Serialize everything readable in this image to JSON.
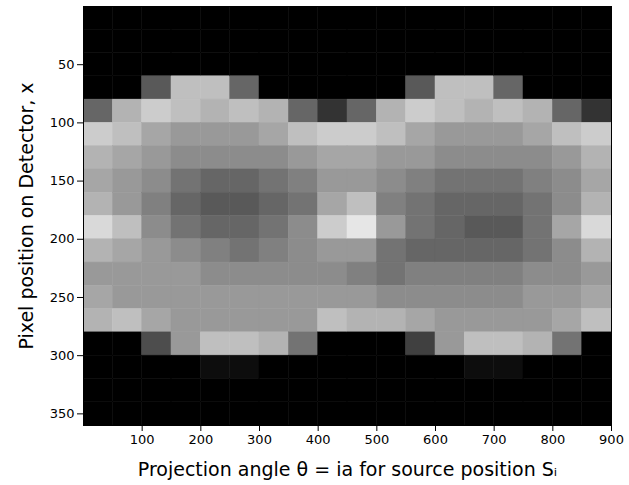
{
  "chart_data": {
    "type": "heatmap",
    "x_label": "Projection angle θ = ia for source position Sᵢ",
    "y_label": "Pixel position on Detector, x",
    "xlim": [
      0,
      900
    ],
    "ylim": [
      0,
      360
    ],
    "xticks": [
      100,
      200,
      300,
      400,
      500,
      600,
      700,
      800,
      900
    ],
    "yticks": [
      50,
      100,
      150,
      200,
      250,
      300,
      350
    ],
    "x_bins": [
      0,
      50,
      100,
      150,
      200,
      250,
      300,
      350,
      400,
      450,
      500,
      550,
      600,
      650,
      700,
      750,
      800,
      850,
      900
    ],
    "y_bins": [
      0,
      20,
      40,
      60,
      80,
      100,
      120,
      140,
      160,
      180,
      200,
      220,
      240,
      260,
      280,
      300,
      320,
      340,
      360
    ],
    "zlim": [
      0,
      1
    ],
    "values": [
      [
        0,
        0,
        0,
        0,
        0.4,
        0.8,
        0.7,
        0.65,
        0.7,
        0.85,
        0.7,
        0.6,
        0.65,
        0.7,
        0,
        0,
        0,
        0
      ],
      [
        0,
        0,
        0,
        0,
        0.7,
        0.75,
        0.65,
        0.6,
        0.6,
        0.75,
        0.65,
        0.6,
        0.6,
        0.75,
        0,
        0,
        0,
        0
      ],
      [
        0,
        0,
        0,
        0.35,
        0.8,
        0.65,
        0.6,
        0.55,
        0.5,
        0.55,
        0.6,
        0.6,
        0.6,
        0.65,
        0.3,
        0,
        0,
        0
      ],
      [
        0,
        0,
        0,
        0.75,
        0.75,
        0.6,
        0.55,
        0.45,
        0.4,
        0.45,
        0.55,
        0.6,
        0.6,
        0.6,
        0.6,
        0,
        0,
        0
      ],
      [
        0,
        0,
        0,
        0.75,
        0.7,
        0.6,
        0.55,
        0.4,
        0.35,
        0.4,
        0.5,
        0.55,
        0.6,
        0.6,
        0.75,
        0.05,
        0,
        0
      ],
      [
        0,
        0,
        0,
        0.4,
        0.75,
        0.6,
        0.55,
        0.4,
        0.35,
        0.4,
        0.45,
        0.55,
        0.6,
        0.6,
        0.75,
        0.05,
        0,
        0
      ],
      [
        0,
        0,
        0,
        0,
        0.7,
        0.65,
        0.55,
        0.45,
        0.4,
        0.45,
        0.5,
        0.55,
        0.6,
        0.6,
        0.7,
        0,
        0,
        0
      ],
      [
        0,
        0,
        0,
        0,
        0.4,
        0.75,
        0.6,
        0.5,
        0.45,
        0.55,
        0.55,
        0.55,
        0.6,
        0.6,
        0.45,
        0,
        0,
        0
      ],
      [
        0,
        0,
        0,
        0,
        0.2,
        0.8,
        0.65,
        0.6,
        0.65,
        0.8,
        0.6,
        0.55,
        0.6,
        0.75,
        0,
        0,
        0,
        0
      ],
      [
        0,
        0,
        0,
        0,
        0.4,
        0.8,
        0.65,
        0.6,
        0.75,
        0.9,
        0.6,
        0.5,
        0.6,
        0.7,
        0,
        0,
        0,
        0
      ],
      [
        0,
        0,
        0,
        0,
        0.7,
        0.75,
        0.6,
        0.55,
        0.5,
        0.6,
        0.45,
        0.45,
        0.55,
        0.7,
        0,
        0,
        0,
        0
      ],
      [
        0,
        0,
        0,
        0.35,
        0.8,
        0.65,
        0.6,
        0.5,
        0.45,
        0.45,
        0.4,
        0.5,
        0.55,
        0.65,
        0.25,
        0,
        0,
        0
      ],
      [
        0,
        0,
        0,
        0.75,
        0.75,
        0.6,
        0.55,
        0.45,
        0.4,
        0.4,
        0.4,
        0.5,
        0.55,
        0.6,
        0.6,
        0,
        0,
        0
      ],
      [
        0,
        0,
        0,
        0.75,
        0.7,
        0.6,
        0.55,
        0.45,
        0.4,
        0.35,
        0.4,
        0.5,
        0.55,
        0.6,
        0.75,
        0.05,
        0,
        0
      ],
      [
        0,
        0,
        0,
        0.4,
        0.75,
        0.6,
        0.55,
        0.45,
        0.4,
        0.35,
        0.4,
        0.5,
        0.55,
        0.6,
        0.75,
        0.05,
        0,
        0
      ],
      [
        0,
        0,
        0,
        0,
        0.7,
        0.65,
        0.55,
        0.5,
        0.45,
        0.45,
        0.45,
        0.55,
        0.6,
        0.6,
        0.7,
        0,
        0,
        0
      ],
      [
        0,
        0,
        0,
        0,
        0.4,
        0.75,
        0.6,
        0.55,
        0.55,
        0.65,
        0.55,
        0.55,
        0.6,
        0.65,
        0.45,
        0,
        0,
        0
      ],
      [
        0,
        0,
        0,
        0,
        0.2,
        0.8,
        0.7,
        0.65,
        0.7,
        0.85,
        0.7,
        0.6,
        0.65,
        0.75,
        0,
        0,
        0,
        0
      ]
    ]
  }
}
